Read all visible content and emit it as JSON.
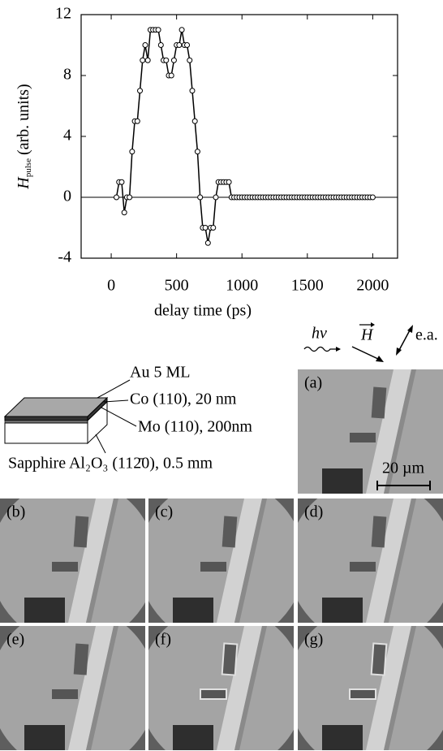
{
  "chart_data": {
    "type": "line",
    "markers": true,
    "xlabel": "delay time (ps)",
    "ylabel": {
      "symbol": "H",
      "subscript": "pulse",
      "unit": "(arb. units)"
    },
    "x": [
      40,
      60,
      80,
      100,
      120,
      140,
      160,
      180,
      200,
      220,
      240,
      260,
      280,
      300,
      320,
      340,
      360,
      380,
      400,
      420,
      440,
      460,
      480,
      500,
      520,
      540,
      560,
      580,
      600,
      620,
      640,
      660,
      680,
      700,
      720,
      740,
      760,
      780,
      800,
      820,
      840,
      860,
      880,
      900,
      920,
      940,
      960,
      980,
      1000,
      1020,
      1040,
      1060,
      1080,
      1100,
      1120,
      1140,
      1160,
      1180,
      1200,
      1220,
      1240,
      1260,
      1280,
      1300,
      1320,
      1340,
      1360,
      1380,
      1400,
      1420,
      1440,
      1460,
      1480,
      1500,
      1520,
      1540,
      1560,
      1580,
      1600,
      1620,
      1640,
      1660,
      1680,
      1700,
      1720,
      1740,
      1760,
      1780,
      1800,
      1820,
      1840,
      1860,
      1880,
      1900,
      1920,
      1940,
      1960,
      1980,
      2000
    ],
    "values": [
      0,
      1,
      1,
      -1,
      0,
      0,
      3,
      5,
      5,
      7,
      9,
      10,
      9,
      11,
      11,
      11,
      11,
      10,
      9,
      9,
      8,
      8,
      9,
      10,
      10,
      11,
      10,
      10,
      9,
      7,
      5,
      3,
      0,
      -2,
      -2,
      -3,
      -2,
      -2,
      0,
      1,
      1,
      1,
      1,
      1,
      0,
      0,
      0,
      0,
      0,
      0,
      0,
      0,
      0,
      0,
      0,
      0,
      0,
      0,
      0,
      0,
      0,
      0,
      0,
      0,
      0,
      0,
      0,
      0,
      0,
      0,
      0,
      0,
      0,
      0,
      0,
      0,
      0,
      0,
      0,
      0,
      0,
      0,
      0,
      0,
      0,
      0,
      0,
      0,
      0,
      0,
      0,
      0,
      0,
      0,
      0,
      0,
      0,
      0,
      0
    ],
    "color": "#000000",
    "reference_line": 0,
    "xlim": [
      -230,
      2190
    ],
    "xticks": [
      0,
      500,
      1000,
      1500,
      2000
    ],
    "ylim": [
      -4,
      12
    ],
    "yticks": [
      -4,
      0,
      4,
      8,
      12
    ]
  },
  "figure": {
    "icons": {
      "light": "hν",
      "field": "H",
      "easy_axis": "e.a."
    },
    "sample": {
      "layers": [
        "Au 5 ML",
        "Co (110), 20 nm",
        "Mo (110), 200nm"
      ],
      "substrate": "Sapphire Al₂O₃ (112̄0), 0.5 mm"
    },
    "scale_bar": "20 µm",
    "panels": [
      "(a)",
      "(b)",
      "(c)",
      "(d)",
      "(e)",
      "(f)",
      "(g)"
    ]
  }
}
